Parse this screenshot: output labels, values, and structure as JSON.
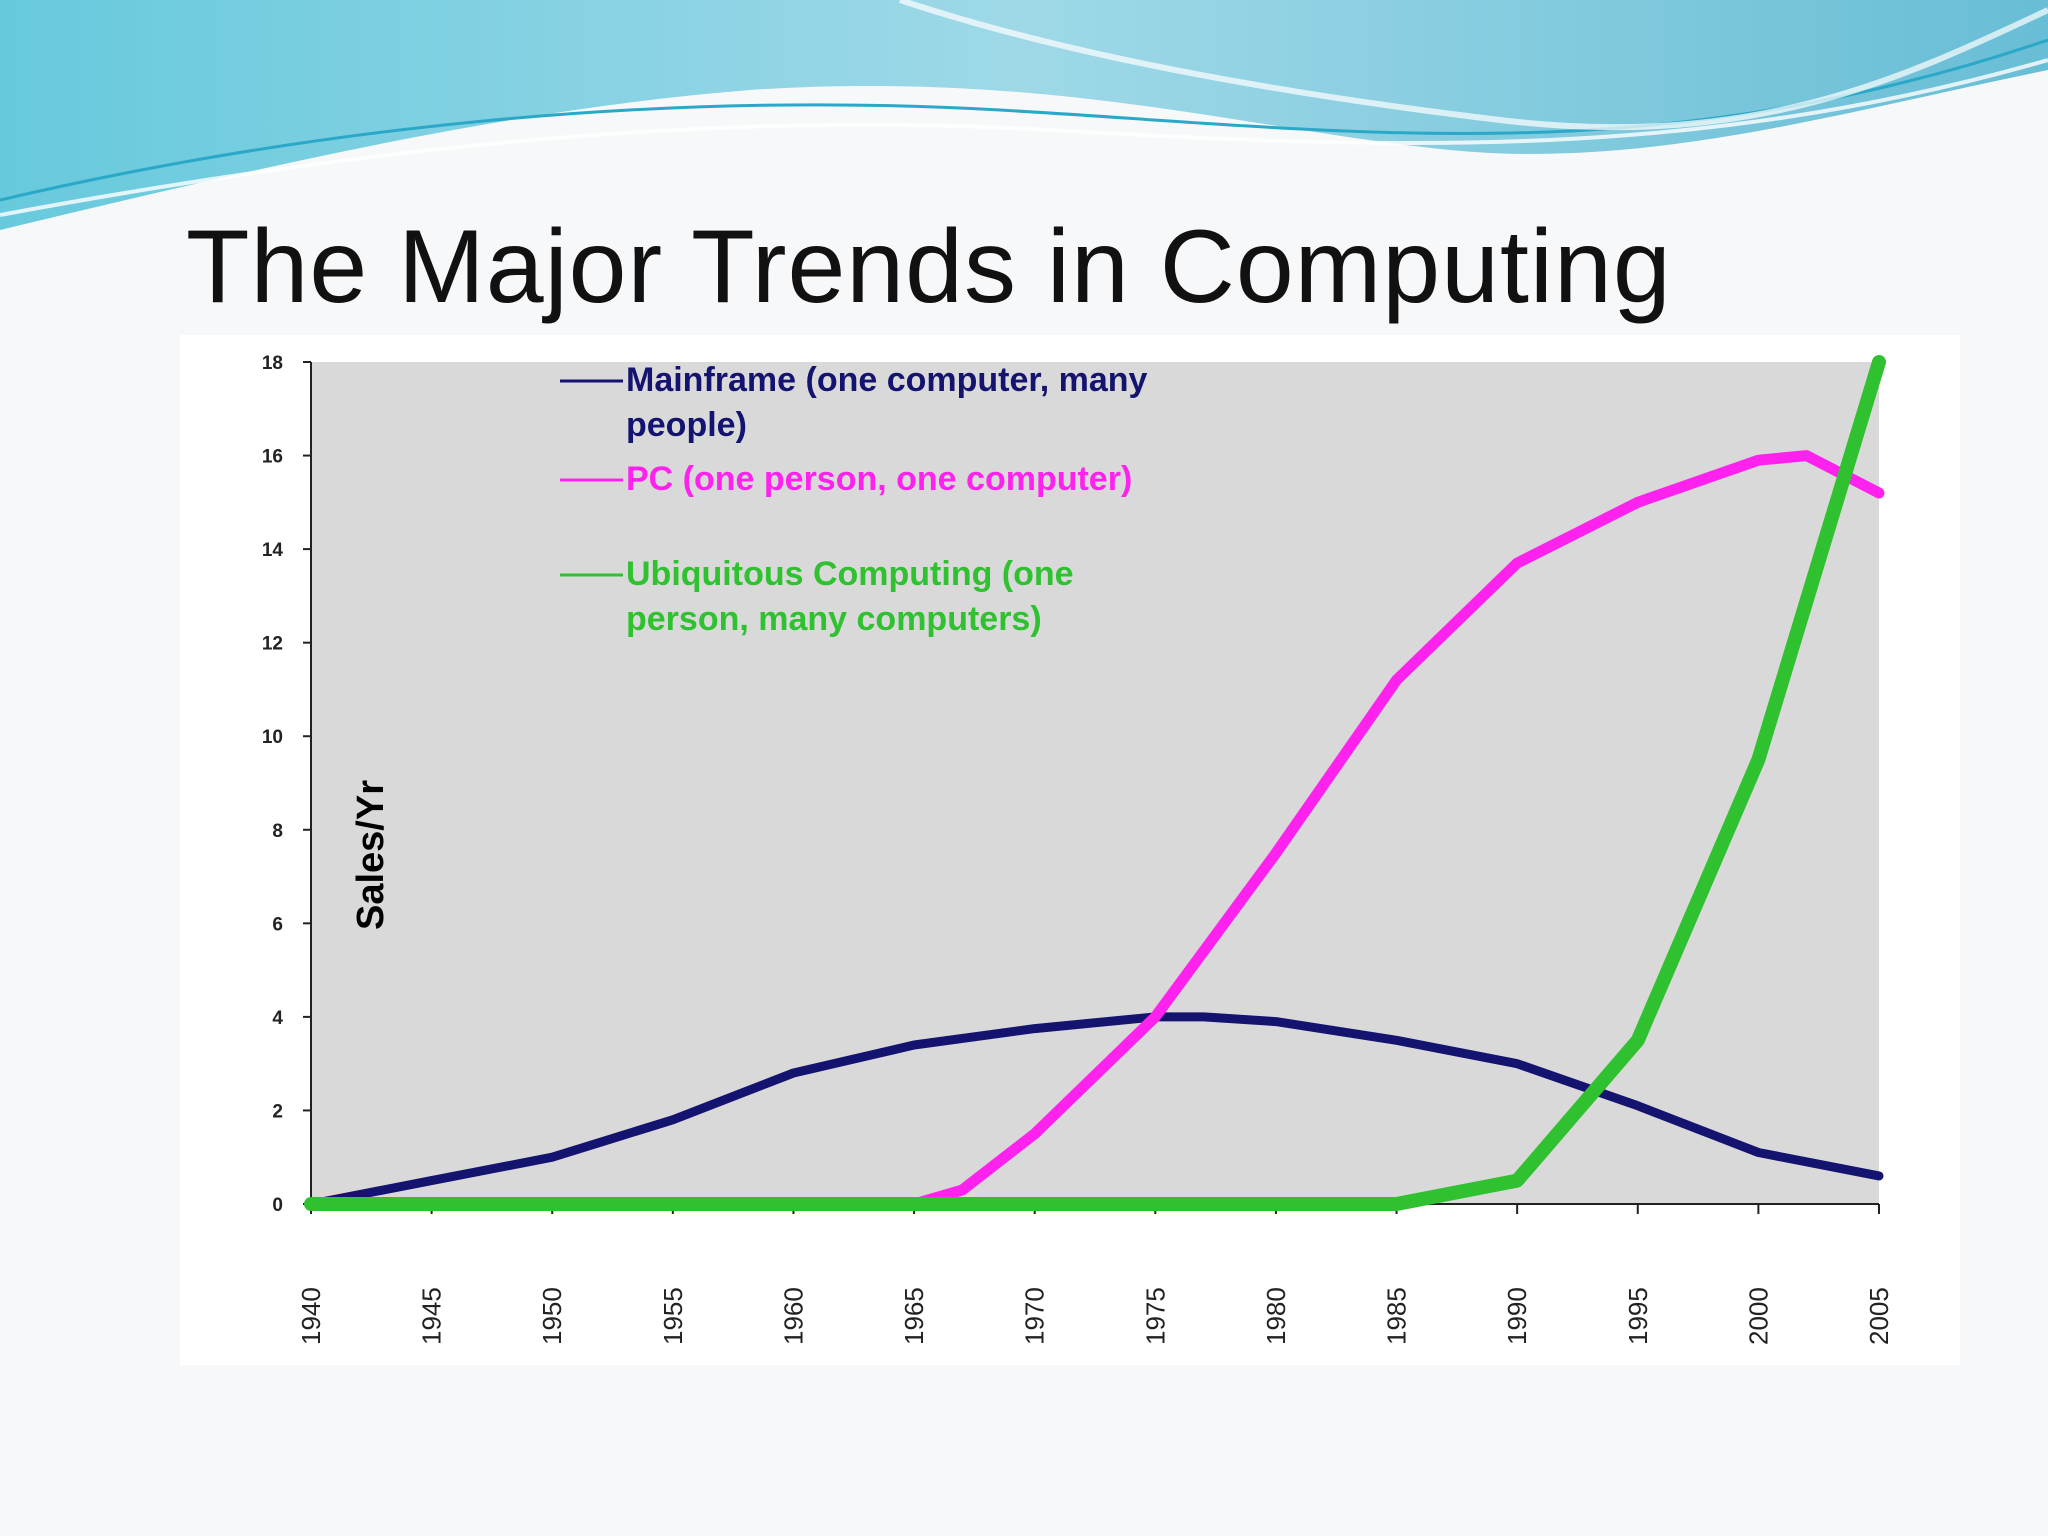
{
  "slide": {
    "title": "The Major Trends in Computing",
    "accent_colors": [
      "#7ec8dc",
      "#3fb6d4",
      "#b8e6ef"
    ]
  },
  "chart_data": {
    "type": "line",
    "title": "",
    "xlabel": "",
    "ylabel": "Sales/Yr",
    "xlim": [
      1940,
      2005
    ],
    "ylim": [
      0,
      18
    ],
    "x_ticks": [
      "1940",
      "1945",
      "1950",
      "1955",
      "1960",
      "1965",
      "1970",
      "1975",
      "1980",
      "1985",
      "1990",
      "1995",
      "2000",
      "2005"
    ],
    "y_ticks": [
      "0",
      "2",
      "4",
      "6",
      "8",
      "10",
      "12",
      "14",
      "16",
      "18"
    ],
    "grid": false,
    "legend_position": "top-left",
    "plot_background": "#d9d9d9",
    "series": [
      {
        "name": "Mainframe (one computer, many people)",
        "legend_lines": [
          "Mainframe (one computer, many",
          "people)"
        ],
        "color": "#141470",
        "x": [
          1940,
          1945,
          1950,
          1955,
          1960,
          1965,
          1970,
          1975,
          1977,
          1980,
          1985,
          1990,
          1995,
          2000,
          2005
        ],
        "y": [
          0,
          0.5,
          1.0,
          1.8,
          2.8,
          3.4,
          3.75,
          4.0,
          4.0,
          3.9,
          3.5,
          3.0,
          2.1,
          1.1,
          0.6
        ]
      },
      {
        "name": "PC (one person, one computer)",
        "legend_lines": [
          "PC (one person, one computer)"
        ],
        "color": "#ff22ee",
        "x": [
          1965,
          1967,
          1970,
          1975,
          1980,
          1985,
          1990,
          1995,
          2000,
          2002,
          2005
        ],
        "y": [
          0,
          0.3,
          1.5,
          4.0,
          7.5,
          11.2,
          13.7,
          15.0,
          15.9,
          16.0,
          15.2
        ]
      },
      {
        "name": "Ubiquitous Computing (one person, many computers)",
        "legend_lines": [
          "Ubiquitous Computing (one",
          "person, many computers)"
        ],
        "color": "#2fc12f",
        "x": [
          1940,
          1985,
          1990,
          1995,
          2000,
          2005
        ],
        "y": [
          0,
          0,
          0.5,
          3.5,
          9.5,
          18
        ]
      }
    ]
  }
}
